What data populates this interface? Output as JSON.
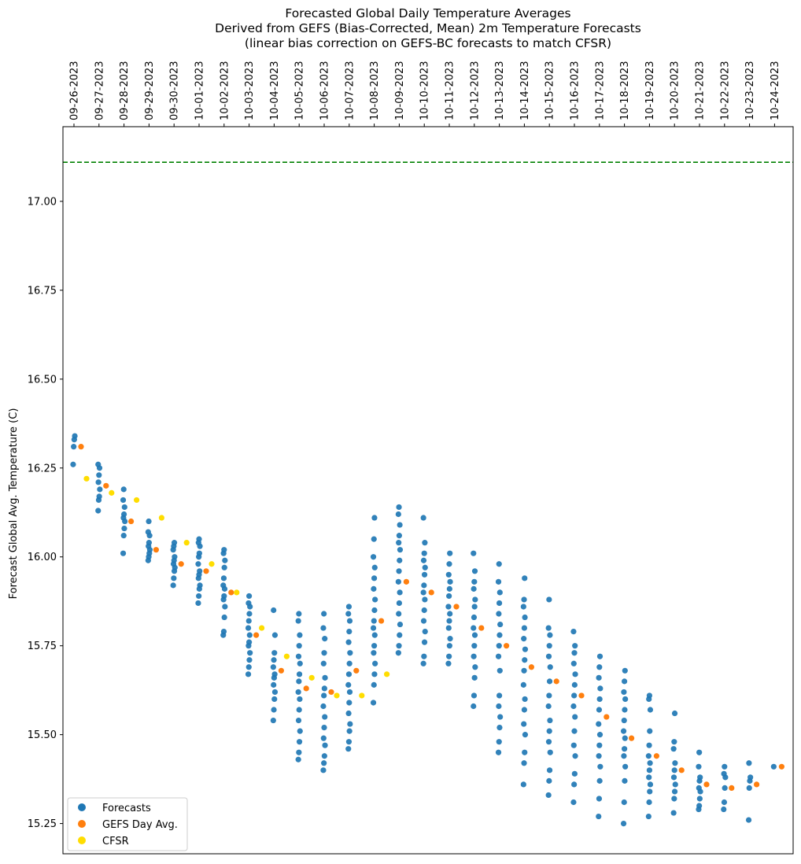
{
  "chart_data": {
    "type": "scatter",
    "title": "Forecasted Global Daily Temperature Averages",
    "subtitle": "Derived from GEFS (Bias-Corrected, Mean) 2m Temperature Forecasts",
    "subtitle2": "(linear bias correction on GEFS-BC forecasts to match CFSR)",
    "xlabel": "",
    "ylabel": "Forecast Global Avg. Temperature (C)",
    "x_tick_position": "top",
    "ylim": [
      15.165,
      17.21
    ],
    "y_ticks": [
      15.25,
      15.5,
      15.75,
      16.0,
      16.25,
      16.5,
      16.75,
      17.0
    ],
    "y_tick_labels": [
      "15.25",
      "15.50",
      "15.75",
      "16.00",
      "16.25",
      "16.50",
      "16.75",
      "17.00"
    ],
    "grid": false,
    "legend_position": "lower-left",
    "reference_line": {
      "y": 17.11,
      "color": "#008000",
      "style": "dashed"
    },
    "categories": [
      "09-26-2023",
      "09-27-2023",
      "09-28-2023",
      "09-29-2023",
      "09-30-2023",
      "10-01-2023",
      "10-02-2023",
      "10-03-2023",
      "10-04-2023",
      "10-05-2023",
      "10-06-2023",
      "10-07-2023",
      "10-08-2023",
      "10-09-2023",
      "10-10-2023",
      "10-11-2023",
      "10-12-2023",
      "10-13-2023",
      "10-14-2023",
      "10-15-2023",
      "10-16-2023",
      "10-17-2023",
      "10-18-2023",
      "10-19-2023",
      "10-20-2023",
      "10-21-2023",
      "10-22-2023",
      "10-23-2023",
      "10-24-2023"
    ],
    "series": [
      {
        "name": "Forecasts",
        "color": "#1f77b4",
        "spread": [
          [
            16.26,
            16.31,
            16.33,
            16.34
          ],
          [
            16.13,
            16.16,
            16.17,
            16.19,
            16.21,
            16.23,
            16.25,
            16.26
          ],
          [
            16.01,
            16.06,
            16.08,
            16.1,
            16.11,
            16.12,
            16.14,
            16.16,
            16.19
          ],
          [
            15.99,
            16.0,
            16.01,
            16.02,
            16.03,
            16.04,
            16.06,
            16.07,
            16.1
          ],
          [
            15.92,
            15.94,
            15.96,
            15.97,
            15.98,
            15.99,
            16.0,
            16.02,
            16.03,
            16.04
          ],
          [
            15.87,
            15.89,
            15.91,
            15.92,
            15.94,
            15.95,
            15.96,
            15.98,
            16.0,
            16.01,
            16.03,
            16.04,
            16.05
          ],
          [
            15.78,
            15.79,
            15.83,
            15.86,
            15.88,
            15.89,
            15.91,
            15.92,
            15.94,
            15.97,
            15.99,
            16.01,
            16.02
          ],
          [
            15.67,
            15.69,
            15.71,
            15.73,
            15.75,
            15.76,
            15.78,
            15.8,
            15.82,
            15.84,
            15.86,
            15.87,
            15.89
          ],
          [
            15.54,
            15.57,
            15.6,
            15.62,
            15.64,
            15.66,
            15.67,
            15.69,
            15.71,
            15.73,
            15.78,
            15.85
          ],
          [
            15.43,
            15.45,
            15.48,
            15.51,
            15.54,
            15.57,
            15.6,
            15.62,
            15.65,
            15.67,
            15.7,
            15.72,
            15.75,
            15.78,
            15.82,
            15.84
          ],
          [
            15.4,
            15.42,
            15.44,
            15.47,
            15.49,
            15.52,
            15.55,
            15.58,
            15.61,
            15.63,
            15.66,
            15.7,
            15.73,
            15.77,
            15.8,
            15.84
          ],
          [
            15.46,
            15.48,
            15.51,
            15.53,
            15.56,
            15.59,
            15.62,
            15.64,
            15.67,
            15.7,
            15.73,
            15.76,
            15.79,
            15.82,
            15.84,
            15.86
          ],
          [
            15.59,
            15.64,
            15.67,
            15.7,
            15.73,
            15.75,
            15.78,
            15.8,
            15.82,
            15.85,
            15.88,
            15.91,
            15.94,
            15.97,
            16.0,
            16.05,
            16.11
          ],
          [
            15.73,
            15.75,
            15.78,
            15.81,
            15.84,
            15.87,
            15.9,
            15.93,
            15.96,
            15.99,
            16.02,
            16.04,
            16.06,
            16.09,
            16.12,
            16.14
          ],
          [
            15.7,
            15.72,
            15.76,
            15.79,
            15.82,
            15.85,
            15.88,
            15.9,
            15.92,
            15.95,
            15.97,
            15.99,
            16.01,
            16.04,
            16.11
          ],
          [
            15.7,
            15.72,
            15.75,
            15.77,
            15.8,
            15.82,
            15.84,
            15.86,
            15.89,
            15.91,
            15.93,
            15.95,
            15.98,
            16.01
          ],
          [
            15.58,
            15.61,
            15.66,
            15.69,
            15.72,
            15.75,
            15.78,
            15.8,
            15.83,
            15.86,
            15.88,
            15.91,
            15.93,
            15.96,
            16.01
          ],
          [
            15.45,
            15.48,
            15.52,
            15.55,
            15.58,
            15.61,
            15.68,
            15.72,
            15.75,
            15.78,
            15.81,
            15.84,
            15.87,
            15.9,
            15.93,
            15.98
          ],
          [
            15.36,
            15.42,
            15.45,
            15.5,
            15.53,
            15.57,
            15.6,
            15.64,
            15.68,
            15.71,
            15.74,
            15.77,
            15.8,
            15.83,
            15.86,
            15.88,
            15.94
          ],
          [
            15.33,
            15.37,
            15.4,
            15.45,
            15.48,
            15.51,
            15.54,
            15.58,
            15.61,
            15.65,
            15.69,
            15.72,
            15.75,
            15.78,
            15.8,
            15.88
          ],
          [
            15.31,
            15.36,
            15.39,
            15.44,
            15.47,
            15.51,
            15.55,
            15.58,
            15.61,
            15.64,
            15.67,
            15.7,
            15.73,
            15.75,
            15.79
          ],
          [
            15.27,
            15.32,
            15.37,
            15.41,
            15.44,
            15.47,
            15.5,
            15.53,
            15.57,
            15.6,
            15.63,
            15.66,
            15.69,
            15.72
          ],
          [
            15.25,
            15.31,
            15.37,
            15.41,
            15.44,
            15.46,
            15.49,
            15.51,
            15.54,
            15.57,
            15.6,
            15.62,
            15.65,
            15.68
          ],
          [
            15.27,
            15.31,
            15.34,
            15.36,
            15.38,
            15.4,
            15.42,
            15.44,
            15.47,
            15.51,
            15.57,
            15.6,
            15.61
          ],
          [
            15.28,
            15.32,
            15.34,
            15.36,
            15.38,
            15.4,
            15.42,
            15.46,
            15.48,
            15.56
          ],
          [
            15.29,
            15.3,
            15.32,
            15.34,
            15.35,
            15.37,
            15.38,
            15.41,
            15.45
          ],
          [
            15.29,
            15.31,
            15.35,
            15.38,
            15.39,
            15.41
          ],
          [
            15.26,
            15.35,
            15.37,
            15.38,
            15.42
          ],
          [
            15.41
          ]
        ]
      },
      {
        "name": "GEFS Day Avg.",
        "color": "#ff7f0e",
        "values": [
          16.31,
          16.2,
          16.1,
          16.02,
          15.98,
          15.96,
          15.9,
          15.78,
          15.68,
          15.63,
          15.62,
          15.68,
          15.82,
          15.93,
          15.9,
          15.86,
          15.8,
          15.75,
          15.69,
          15.65,
          15.61,
          15.55,
          15.49,
          15.44,
          15.4,
          15.36,
          15.35,
          15.36,
          15.41
        ]
      },
      {
        "name": "CFSR",
        "color": "#ffdd00",
        "values": [
          16.22,
          16.18,
          16.16,
          16.11,
          16.04,
          15.98,
          15.9,
          15.8,
          15.72,
          15.66,
          15.61,
          15.61,
          15.67
        ]
      }
    ]
  }
}
